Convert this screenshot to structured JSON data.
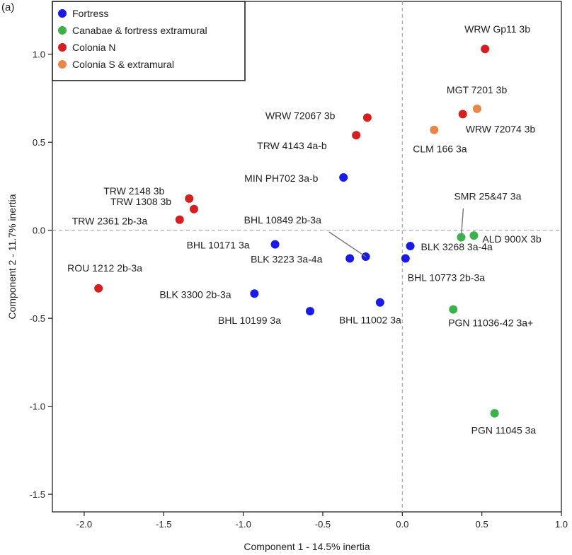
{
  "panel_label": "(a)",
  "chart_data": {
    "type": "scatter",
    "title": "",
    "xlabel": "Component 1 - 14.5% inertia",
    "ylabel": "Component 2 - 11.7% inertia",
    "xlim": [
      -2.2,
      1.0
    ],
    "ylim": [
      -1.6,
      1.3
    ],
    "xticks": [
      -2.0,
      -1.5,
      -1.0,
      -0.5,
      0.0,
      0.5,
      1.0
    ],
    "xtick_labels": [
      "-2.0",
      "-1.5",
      "-1.0",
      "-0.5",
      "0.0",
      "0.5",
      "1.0"
    ],
    "yticks": [
      1.0,
      0.5,
      0.0,
      -0.5,
      -1.0,
      -1.5
    ],
    "ytick_labels": [
      "1.0",
      "0.5",
      "0.0",
      "-0.5",
      "-1.0",
      "-1.5"
    ],
    "reference_lines": {
      "x": 0.0,
      "y": 0.0
    },
    "legend_position": "top-left",
    "grid": false,
    "series": [
      {
        "name": "Fortress",
        "color": "#1a1ae6",
        "points": [
          {
            "label": "MIN PH702 3a-b",
            "x": -0.37,
            "y": 0.3
          },
          {
            "label": "BHL 10171 3a",
            "x": -0.8,
            "y": -0.08
          },
          {
            "label": "BLK 3223 3a-4a",
            "x": -0.33,
            "y": -0.16
          },
          {
            "label": "BHL 10849 2b-3a",
            "x": -0.23,
            "y": -0.15
          },
          {
            "label": "BLK 3268 3a-4a",
            "x": 0.05,
            "y": -0.09
          },
          {
            "label": "BHL 10773 2b-3a",
            "x": 0.02,
            "y": -0.16
          },
          {
            "label": "BLK 3300 2b-3a",
            "x": -0.93,
            "y": -0.36
          },
          {
            "label": "BHL 10199 3a",
            "x": -0.58,
            "y": -0.46
          },
          {
            "label": "BHL 11002 3a",
            "x": -0.14,
            "y": -0.41
          }
        ]
      },
      {
        "name": "Canabae & fortress extramural",
        "color": "#3cb34a",
        "points": [
          {
            "label": "SMR 25&47 3a",
            "x": 0.37,
            "y": -0.04
          },
          {
            "label": "ALD 900X 3b",
            "x": 0.45,
            "y": -0.03
          },
          {
            "label": "PGN 11036-42 3a+",
            "x": 0.32,
            "y": -0.45
          },
          {
            "label": "PGN 11045 3a",
            "x": 0.58,
            "y": -1.04
          }
        ]
      },
      {
        "name": "Colonia N",
        "color": "#d41f1f",
        "points": [
          {
            "label": "WRW Gp11 3b",
            "x": 0.52,
            "y": 1.03
          },
          {
            "label": "WRW 72074 3b",
            "x": 0.38,
            "y": 0.66
          },
          {
            "label": "WRW 72067 3b",
            "x": -0.22,
            "y": 0.64
          },
          {
            "label": "TRW 4143 4a-b",
            "x": -0.29,
            "y": 0.54
          },
          {
            "label": "TRW 2148 3b",
            "x": -1.34,
            "y": 0.18
          },
          {
            "label": "TRW 1308 3b",
            "x": -1.31,
            "y": 0.12
          },
          {
            "label": "TRW 2361 2b-3a",
            "x": -1.4,
            "y": 0.06
          },
          {
            "label": "ROU 1212 2b-3a",
            "x": -1.91,
            "y": -0.33
          }
        ]
      },
      {
        "name": "Colonia S & extramural",
        "color": "#e8874a",
        "points": [
          {
            "label": "MGT 7201 3b",
            "x": 0.47,
            "y": 0.69
          },
          {
            "label": "CLM 166 3a",
            "x": 0.2,
            "y": 0.57
          }
        ]
      }
    ]
  }
}
